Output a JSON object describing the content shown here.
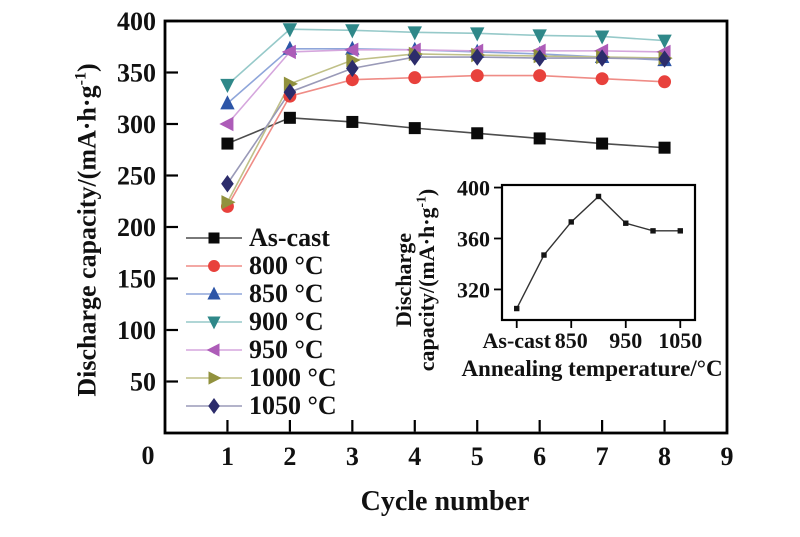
{
  "figure": {
    "background": "#ffffff",
    "origin_label": "0"
  },
  "chart_data": [
    {
      "id": "main",
      "type": "line",
      "title": "",
      "xlabel": "Cycle number",
      "ylabel": "Discharge capacity/(mA·h·g⁻¹)",
      "ylabel_parts": {
        "pre": "Discharge capacity/(mA·h·g",
        "sup": "-1",
        "post": ")"
      },
      "xlim": [
        0,
        9
      ],
      "ylim": [
        0,
        400
      ],
      "xticks": [
        1,
        2,
        3,
        4,
        5,
        6,
        7,
        8,
        9
      ],
      "yticks": [
        50,
        100,
        150,
        200,
        250,
        300,
        350,
        400
      ],
      "origin_label": "0",
      "grid": false,
      "legend_position": "inside-bottom-left",
      "x": [
        1,
        2,
        3,
        4,
        5,
        6,
        7,
        8
      ],
      "series": [
        {
          "name": "As-cast",
          "marker": "square",
          "marker_color": "#0a0a0a",
          "line_color": "#4d4d4d",
          "values": [
            281,
            306,
            302,
            296,
            291,
            286,
            281,
            277
          ]
        },
        {
          "name": "800 °C",
          "marker": "circle",
          "marker_color": "#e8413c",
          "line_color": "#ef8c86",
          "values": [
            220,
            327,
            343,
            345,
            347,
            347,
            344,
            341
          ]
        },
        {
          "name": "850 °C",
          "marker": "triangle-up",
          "marker_color": "#2d55a7",
          "line_color": "#8fa6da",
          "values": [
            320,
            373,
            373,
            372,
            370,
            368,
            365,
            362
          ]
        },
        {
          "name": "900 °C",
          "marker": "triangle-down",
          "marker_color": "#2f8889",
          "line_color": "#96c9c9",
          "values": [
            338,
            392,
            391,
            389,
            388,
            386,
            385,
            381
          ]
        },
        {
          "name": "950 °C",
          "marker": "triangle-left",
          "marker_color": "#ad5cb8",
          "line_color": "#d5a6dd",
          "values": [
            300,
            370,
            372,
            372,
            371,
            371,
            371,
            370
          ]
        },
        {
          "name": "1000 °C",
          "marker": "triangle-right",
          "marker_color": "#91913d",
          "line_color": "#c0c088",
          "values": [
            224,
            339,
            362,
            368,
            367,
            366,
            365,
            364
          ]
        },
        {
          "name": "1050 °C",
          "marker": "diamond",
          "marker_color": "#2c2c6b",
          "line_color": "#9a9ab8",
          "values": [
            242,
            331,
            354,
            365,
            365,
            364,
            364,
            363
          ]
        }
      ]
    },
    {
      "id": "inset",
      "type": "line",
      "title": "",
      "xlabel": "Annealing temperature/°C",
      "ylabel": "Discharge capacity/(mA·h·g⁻¹)",
      "ylabel_lines": [
        "Discharge",
        "capacity/(mA·h·g⁻¹)"
      ],
      "ylabel_line1": "Discharge",
      "ylabel_line2_parts": {
        "pre": "capacity/(mA·h·g",
        "sup": "-1",
        "post": ")"
      },
      "xlim": [
        723,
        1077
      ],
      "ylim": [
        296,
        402
      ],
      "xtick_positions": [
        750,
        850,
        950,
        1050
      ],
      "xtick_labels": [
        "As-cast",
        "850",
        "950",
        "1050"
      ],
      "yticks": [
        320,
        360,
        400
      ],
      "grid": false,
      "x": [
        750,
        800,
        850,
        900,
        950,
        1000,
        1050
      ],
      "x_meaning": [
        "As-cast",
        "800",
        "850",
        "900",
        "950",
        "1000",
        "1050"
      ],
      "values": [
        305,
        347,
        373,
        393,
        372,
        366,
        366
      ],
      "marker": "square",
      "marker_color": "#141414",
      "line_color": "#333333"
    }
  ]
}
